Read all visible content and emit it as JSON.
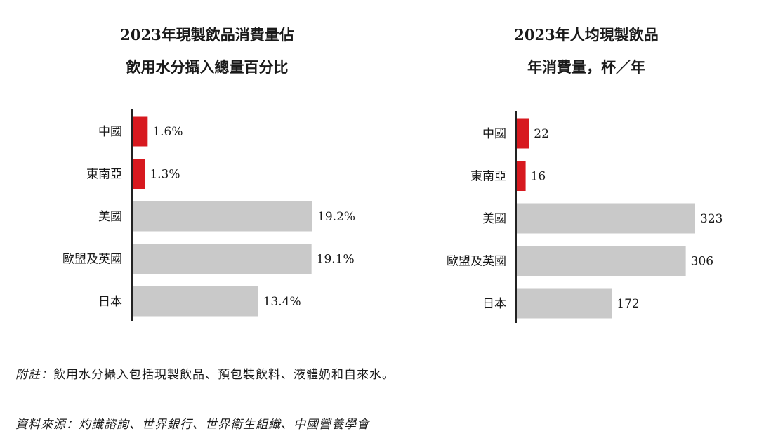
{
  "left_chart": {
    "title_line1": "2023年現製飲品消費量佔",
    "title_line2": "飲用水分攝入總量百分比"
  },
  "right_chart": {
    "title_line1": "2023年人均現製飲品",
    "title_line2": "年消費量，杯／年"
  },
  "colors": {
    "highlight": "#d7191f",
    "neutral": "#c9c9c9",
    "axis": "#222222"
  },
  "chart_data": [
    {
      "type": "bar",
      "orientation": "horizontal",
      "title": "2023年現製飲品消費量佔飲用水分攝入總量百分比",
      "categories": [
        "中國",
        "東南亞",
        "美國",
        "歐盟及英國",
        "日本"
      ],
      "values": [
        1.6,
        1.3,
        19.2,
        19.1,
        13.4
      ],
      "value_labels": [
        "1.6%",
        "1.3%",
        "19.2%",
        "19.1%",
        "13.4%"
      ],
      "highlight": [
        true,
        true,
        false,
        false,
        false
      ],
      "xlim": [
        0,
        19.2
      ]
    },
    {
      "type": "bar",
      "orientation": "horizontal",
      "title": "2023年人均現製飲品年消費量，杯／年",
      "categories": [
        "中國",
        "東南亞",
        "美國",
        "歐盟及英國",
        "日本"
      ],
      "values": [
        22,
        16,
        323,
        306,
        172
      ],
      "value_labels": [
        "22",
        "16",
        "323",
        "306",
        "172"
      ],
      "highlight": [
        true,
        true,
        false,
        false,
        false
      ],
      "xlim": [
        0,
        323
      ]
    }
  ],
  "notes": {
    "footnote_prefix": "附註：",
    "footnote_text": "飲用水分攝入包括現製飲品、預包裝飲料、液體奶和自來水。",
    "source_prefix": "資料來源：灼識諮詢、世界銀行、世界衛生組織、中國營養學會"
  }
}
